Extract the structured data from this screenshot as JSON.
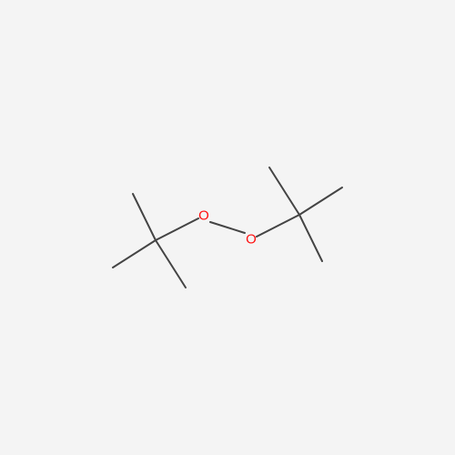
{
  "molecule": {
    "colors": {
      "background": "#f4f4f4",
      "bond": "#444444",
      "oxygen": "#ff0d0d"
    },
    "atoms": [
      {
        "id": "o1",
        "label": "O"
      },
      {
        "id": "o2",
        "label": "O"
      }
    ]
  }
}
